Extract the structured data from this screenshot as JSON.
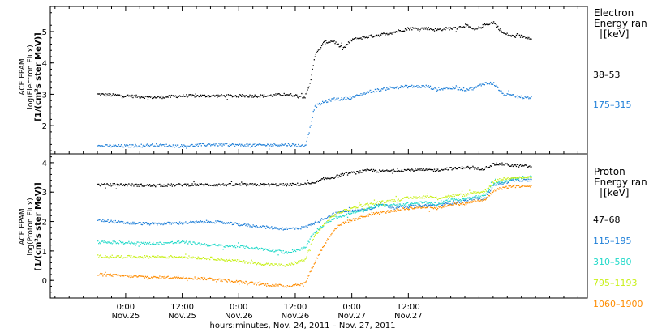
{
  "chart_data": [
    {
      "type": "scatter",
      "panel": "electron",
      "ylabel": [
        "ACE EPAM",
        "log(Electron Flux)",
        "[1/(cm²s ster MeV)]"
      ],
      "ylim": [
        1.1,
        5.8
      ],
      "yticks": [
        2,
        3,
        4,
        5
      ],
      "legend_title": [
        "Electron",
        "Energy ran",
        "[keV]"
      ],
      "series": [
        {
          "name": "38–53",
          "color": "#000000",
          "x": [
            0,
            6,
            12,
            18,
            24,
            30,
            36,
            40,
            44,
            45,
            46,
            48,
            50,
            52,
            54,
            56,
            58,
            60,
            62,
            66,
            70,
            72,
            74,
            76,
            78,
            80,
            82,
            84,
            86,
            88,
            90,
            92
          ],
          "y": [
            3.0,
            2.95,
            2.9,
            2.95,
            2.95,
            2.95,
            2.95,
            3.0,
            2.92,
            3.3,
            4.2,
            4.65,
            4.7,
            4.45,
            4.75,
            4.8,
            4.85,
            4.9,
            4.95,
            5.1,
            5.1,
            5.05,
            5.1,
            5.1,
            5.2,
            5.05,
            5.2,
            5.3,
            4.95,
            4.85,
            4.85,
            4.8
          ]
        },
        {
          "name": "175–315",
          "color": "#1f7fd8",
          "x": [
            0,
            6,
            12,
            18,
            24,
            30,
            36,
            40,
            44,
            45,
            46,
            48,
            50,
            52,
            54,
            56,
            58,
            60,
            62,
            66,
            70,
            72,
            74,
            76,
            78,
            80,
            82,
            84,
            86,
            88,
            90,
            92
          ],
          "y": [
            1.35,
            1.35,
            1.38,
            1.35,
            1.4,
            1.38,
            1.38,
            1.4,
            1.35,
            1.9,
            2.6,
            2.75,
            2.85,
            2.85,
            2.9,
            3.0,
            3.1,
            3.15,
            3.2,
            3.25,
            3.25,
            3.15,
            3.2,
            3.2,
            3.15,
            3.2,
            3.35,
            3.35,
            3.0,
            2.95,
            2.9,
            2.9
          ]
        }
      ]
    },
    {
      "type": "scatter",
      "panel": "proton",
      "ylabel": [
        "ACE EPAM",
        "log(Proton Flux)",
        "[1/(cm²s ster MeV)]"
      ],
      "ylim": [
        -0.6,
        4.3
      ],
      "yticks": [
        0,
        1,
        2,
        3,
        4
      ],
      "legend_title": [
        "Proton",
        "Energy ran",
        "[keV]"
      ],
      "series": [
        {
          "name": "47–68",
          "color": "#000000",
          "x": [
            0,
            6,
            12,
            18,
            24,
            30,
            36,
            40,
            44,
            46,
            48,
            50,
            52,
            54,
            56,
            58,
            60,
            62,
            66,
            70,
            72,
            74,
            76,
            78,
            80,
            82,
            84,
            86,
            88,
            90,
            92
          ],
          "y": [
            3.25,
            3.25,
            3.22,
            3.25,
            3.25,
            3.25,
            3.25,
            3.25,
            3.27,
            3.3,
            3.45,
            3.5,
            3.6,
            3.65,
            3.7,
            3.75,
            3.7,
            3.72,
            3.75,
            3.75,
            3.75,
            3.8,
            3.8,
            3.85,
            3.8,
            3.8,
            3.95,
            3.95,
            3.9,
            3.9,
            3.85
          ]
        },
        {
          "name": "115–195",
          "color": "#1f7fd8",
          "x": [
            0,
            6,
            12,
            18,
            24,
            30,
            36,
            40,
            44,
            46,
            48,
            50,
            52,
            54,
            56,
            58,
            60,
            62,
            66,
            70,
            72,
            74,
            76,
            78,
            80,
            82,
            84,
            86,
            88,
            90,
            92
          ],
          "y": [
            2.05,
            1.95,
            1.92,
            1.95,
            2.0,
            1.9,
            1.8,
            1.75,
            1.8,
            1.95,
            2.1,
            2.25,
            2.35,
            2.35,
            2.4,
            2.45,
            2.6,
            2.5,
            2.5,
            2.55,
            2.55,
            2.6,
            2.65,
            2.7,
            2.8,
            2.75,
            3.25,
            3.3,
            3.4,
            3.4,
            3.4
          ]
        },
        {
          "name": "310–580",
          "color": "#22d9c9",
          "x": [
            0,
            6,
            12,
            18,
            24,
            30,
            36,
            40,
            44,
            46,
            48,
            50,
            52,
            54,
            56,
            58,
            60,
            62,
            66,
            70,
            72,
            74,
            76,
            78,
            80,
            82,
            84,
            86,
            88,
            90,
            92
          ],
          "y": [
            1.3,
            1.28,
            1.25,
            1.3,
            1.2,
            1.15,
            1.05,
            0.95,
            1.1,
            1.65,
            1.9,
            2.1,
            2.2,
            2.3,
            2.35,
            2.45,
            2.55,
            2.55,
            2.6,
            2.65,
            2.6,
            2.7,
            2.75,
            2.75,
            2.85,
            2.85,
            3.3,
            3.35,
            3.45,
            3.5,
            3.5
          ]
        },
        {
          "name": "795–1193",
          "color": "#c8f019",
          "x": [
            0,
            6,
            12,
            18,
            24,
            30,
            36,
            40,
            44,
            46,
            48,
            50,
            52,
            54,
            56,
            58,
            60,
            62,
            66,
            70,
            72,
            74,
            76,
            78,
            80,
            82,
            84,
            86,
            88,
            90,
            92
          ],
          "y": [
            0.82,
            0.8,
            0.8,
            0.8,
            0.75,
            0.65,
            0.55,
            0.5,
            0.7,
            1.5,
            1.9,
            2.2,
            2.35,
            2.45,
            2.55,
            2.6,
            2.65,
            2.7,
            2.8,
            2.85,
            2.8,
            2.85,
            2.9,
            2.9,
            3.0,
            3.0,
            3.35,
            3.45,
            3.5,
            3.5,
            3.5
          ]
        },
        {
          "name": "1060–1900",
          "color": "#ff8c00",
          "x": [
            0,
            6,
            12,
            18,
            24,
            30,
            36,
            40,
            44,
            46,
            48,
            50,
            52,
            54,
            56,
            58,
            60,
            62,
            66,
            70,
            72,
            74,
            76,
            78,
            80,
            82,
            84,
            86,
            88,
            90,
            92
          ],
          "y": [
            0.2,
            0.15,
            0.1,
            0.1,
            0.05,
            -0.05,
            -0.15,
            -0.2,
            -0.1,
            0.6,
            1.2,
            1.7,
            1.95,
            2.05,
            2.15,
            2.25,
            2.3,
            2.35,
            2.45,
            2.5,
            2.45,
            2.55,
            2.6,
            2.6,
            2.7,
            2.7,
            3.05,
            3.15,
            3.2,
            3.2,
            3.2
          ]
        }
      ]
    }
  ],
  "xaxis": {
    "xlim": [
      -10,
      104
    ],
    "major_ticks": [
      {
        "x": 6,
        "label1": "0:00",
        "label2": "Nov.25"
      },
      {
        "x": 18,
        "label1": "12:00",
        "label2": "Nov.25"
      },
      {
        "x": 30,
        "label1": "0:00",
        "label2": "Nov.26"
      },
      {
        "x": 42,
        "label1": "12:00",
        "label2": "Nov.26"
      },
      {
        "x": 54,
        "label1": "0:00",
        "label2": "Nov.27"
      },
      {
        "x": 66,
        "label1": "12:00",
        "label2": "Nov.27"
      }
    ],
    "title": "hours:minutes, Nov. 24, 2011 – Nov. 27, 2011"
  }
}
